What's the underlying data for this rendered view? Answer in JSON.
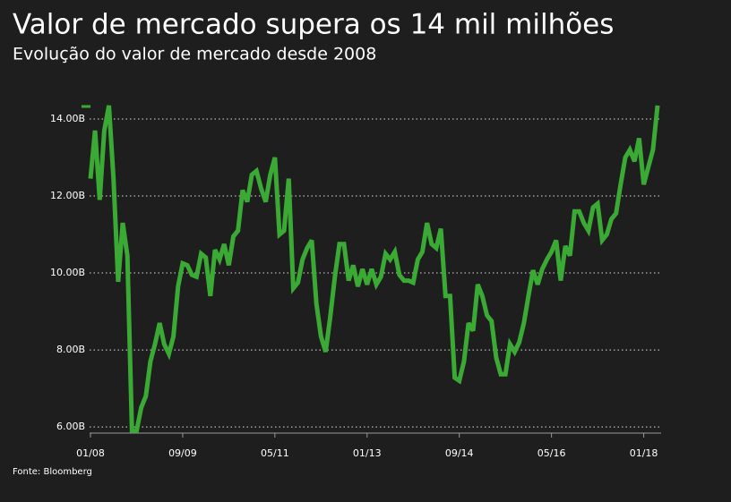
{
  "chart_data": {
    "type": "line",
    "title": "Valor de mercado supera os 14 mil milhões",
    "subtitle": "Evolução do valor de mercado desde 2008",
    "source": "Fonte: Bloomberg",
    "color": "#3aaa35",
    "x": [
      "01/08",
      "02/08",
      "03/08",
      "04/08",
      "05/08",
      "06/08",
      "07/08",
      "08/08",
      "09/08",
      "10/08",
      "11/08",
      "12/08",
      "01/09",
      "02/09",
      "03/09",
      "04/09",
      "05/09",
      "06/09",
      "07/09",
      "08/09",
      "09/09",
      "10/09",
      "11/09",
      "12/09",
      "01/10",
      "02/10",
      "03/10",
      "04/10",
      "05/10",
      "06/10",
      "07/10",
      "08/10",
      "09/10",
      "10/10",
      "11/10",
      "12/10",
      "01/11",
      "02/11",
      "03/11",
      "04/11",
      "05/11",
      "06/11",
      "07/11",
      "08/11",
      "09/11",
      "10/11",
      "11/11",
      "12/11",
      "01/12",
      "02/12",
      "03/12",
      "04/12",
      "05/12",
      "06/12",
      "07/12",
      "08/12",
      "09/12",
      "10/12",
      "11/12",
      "12/12",
      "01/13",
      "02/13",
      "03/13",
      "04/13",
      "05/13",
      "06/13",
      "07/13",
      "08/13",
      "09/13",
      "10/13",
      "11/13",
      "12/13",
      "01/14",
      "02/14",
      "03/14",
      "04/14",
      "05/14",
      "06/14",
      "07/14",
      "08/14",
      "09/14",
      "10/14",
      "11/14",
      "12/14",
      "01/15",
      "02/15",
      "03/15",
      "04/15",
      "05/15",
      "06/15",
      "07/15",
      "08/15",
      "09/15",
      "10/15",
      "11/15",
      "12/15",
      "01/16",
      "02/16",
      "03/16",
      "04/16",
      "05/16",
      "06/16",
      "07/16",
      "08/16",
      "09/16",
      "10/16",
      "11/16",
      "12/16",
      "01/17",
      "02/17",
      "03/17",
      "04/17",
      "05/17",
      "06/17",
      "07/17",
      "08/17",
      "09/17",
      "10/17",
      "11/17",
      "12/17",
      "01/18",
      "02/18",
      "03/18",
      "04/18"
    ],
    "values": [
      12.45,
      13.7,
      11.9,
      13.7,
      14.35,
      12.45,
      9.77,
      11.3,
      10.45,
      5.9,
      5.9,
      6.5,
      6.8,
      7.7,
      8.15,
      8.7,
      8.15,
      7.9,
      8.35,
      9.65,
      10.25,
      10.2,
      9.95,
      9.9,
      10.5,
      10.4,
      9.4,
      10.6,
      10.35,
      10.75,
      10.2,
      10.95,
      11.1,
      12.15,
      11.85,
      12.55,
      12.65,
      12.2,
      11.85,
      12.55,
      13.0,
      11.0,
      11.1,
      12.45,
      9.6,
      9.75,
      10.35,
      10.65,
      10.85,
      9.2,
      8.35,
      7.95,
      8.85,
      9.9,
      10.75,
      10.75,
      9.8,
      10.2,
      9.65,
      10.1,
      9.7,
      10.1,
      9.7,
      9.9,
      10.5,
      10.35,
      10.55,
      9.95,
      9.8,
      9.8,
      9.75,
      10.35,
      10.55,
      11.3,
      10.75,
      10.65,
      11.15,
      9.4,
      9.4,
      7.28,
      7.2,
      7.7,
      8.7,
      8.5,
      9.7,
      9.4,
      8.9,
      8.75,
      7.8,
      7.37,
      7.37,
      8.15,
      7.95,
      8.2,
      8.7,
      9.4,
      10.07,
      9.7,
      10.1,
      10.35,
      10.55,
      10.85,
      9.8,
      10.7,
      10.45,
      11.6,
      11.6,
      11.3,
      11.1,
      11.7,
      11.8,
      10.85,
      11.0,
      11.4,
      11.55,
      12.3,
      13.0,
      13.2,
      12.9,
      13.5,
      12.3,
      12.75,
      13.2,
      14.35
    ],
    "xticks": [
      "01/08",
      "09/09",
      "05/11",
      "01/13",
      "09/14",
      "05/16",
      "01/18"
    ],
    "ylim": [
      5.84,
      14.45
    ],
    "yticks": [
      {
        "value": 6,
        "label": "6.00B"
      },
      {
        "value": 8,
        "label": "8.00B"
      },
      {
        "value": 10,
        "label": "10.00B"
      },
      {
        "value": 12,
        "label": "12.00B"
      },
      {
        "value": 14,
        "label": "14.00B"
      }
    ],
    "grid": true
  }
}
